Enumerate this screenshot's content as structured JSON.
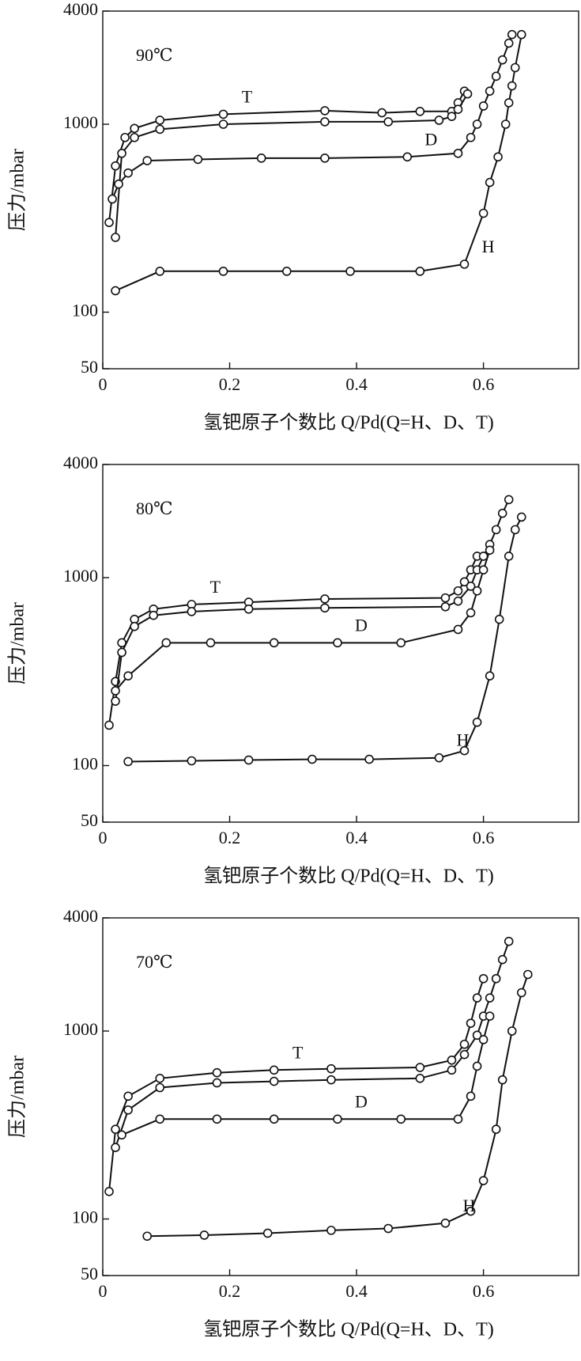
{
  "chart_data": [
    {
      "type": "line",
      "annotation": "90℃",
      "xlabel": "氢钯原子个数比 Q/Pd(Q=H、D、T)",
      "ylabel": "压力/mbar",
      "log_y": true,
      "xlim": [
        0,
        0.75
      ],
      "ylim": [
        50,
        4000
      ],
      "xticks": [
        0,
        0.2,
        0.4,
        0.6
      ],
      "yticks": [
        50,
        100,
        1000,
        4000
      ],
      "series": [
        {
          "name": "T",
          "color": "#111111",
          "x": [
            0.01,
            0.02,
            0.035,
            0.05,
            0.09,
            0.19,
            0.35,
            0.44,
            0.5,
            0.55,
            0.56,
            0.57
          ],
          "values": [
            300,
            600,
            850,
            950,
            1050,
            1130,
            1180,
            1150,
            1170,
            1170,
            1300,
            1500
          ]
        },
        {
          "color": "#111111",
          "x": [
            0.02,
            0.03,
            0.05,
            0.09,
            0.19,
            0.35,
            0.45,
            0.53,
            0.55,
            0.56,
            0.575
          ],
          "values": [
            250,
            700,
            850,
            940,
            1000,
            1030,
            1030,
            1050,
            1100,
            1200,
            1450
          ]
        },
        {
          "name": "D",
          "color": "#111111",
          "x": [
            0.015,
            0.025,
            0.04,
            0.07,
            0.15,
            0.25,
            0.35,
            0.48,
            0.56,
            0.58,
            0.59,
            0.6,
            0.61,
            0.62,
            0.63,
            0.64,
            0.645
          ],
          "values": [
            400,
            480,
            550,
            640,
            650,
            660,
            660,
            670,
            700,
            850,
            1000,
            1250,
            1500,
            1800,
            2200,
            2700,
            3000
          ]
        },
        {
          "name": "H",
          "color": "#111111",
          "x": [
            0.02,
            0.09,
            0.19,
            0.29,
            0.39,
            0.5,
            0.57,
            0.6,
            0.61,
            0.623,
            0.635,
            0.64,
            0.645,
            0.65,
            0.66
          ],
          "values": [
            130,
            165,
            165,
            165,
            165,
            165,
            180,
            336,
            490,
            670,
            1000,
            1300,
            1600,
            2000,
            3000
          ]
        }
      ]
    },
    {
      "type": "line",
      "annotation": "80℃",
      "xlabel": "氢钯原子个数比 Q/Pd(Q=H、D、T)",
      "ylabel": "压力/mbar",
      "log_y": true,
      "xlim": [
        0,
        0.75
      ],
      "ylim": [
        50,
        4000
      ],
      "xticks": [
        0,
        0.2,
        0.4,
        0.6
      ],
      "yticks": [
        50,
        100,
        1000,
        4000
      ],
      "series": [
        {
          "name": "T",
          "color": "#111111",
          "x": [
            0.01,
            0.02,
            0.03,
            0.05,
            0.08,
            0.14,
            0.23,
            0.35,
            0.54,
            0.56,
            0.57,
            0.58,
            0.59
          ],
          "values": [
            164,
            280,
            450,
            600,
            680,
            720,
            740,
            770,
            780,
            850,
            950,
            1100,
            1300
          ]
        },
        {
          "color": "#111111",
          "x": [
            0.02,
            0.03,
            0.05,
            0.08,
            0.14,
            0.23,
            0.35,
            0.54,
            0.56,
            0.58,
            0.59,
            0.6,
            0.61,
            0.62,
            0.63,
            0.64
          ],
          "values": [
            220,
            400,
            550,
            630,
            660,
            680,
            690,
            700,
            750,
            900,
            1100,
            1300,
            1500,
            1800,
            2200,
            2600
          ]
        },
        {
          "name": "D",
          "color": "#111111",
          "x": [
            0.02,
            0.04,
            0.1,
            0.17,
            0.27,
            0.37,
            0.47,
            0.56,
            0.58,
            0.59,
            0.6,
            0.61
          ],
          "values": [
            250,
            300,
            450,
            450,
            450,
            450,
            450,
            530,
            650,
            850,
            1100,
            1400
          ]
        },
        {
          "name": "H",
          "color": "#111111",
          "x": [
            0.04,
            0.14,
            0.23,
            0.33,
            0.42,
            0.53,
            0.57,
            0.59,
            0.61,
            0.625,
            0.64,
            0.65,
            0.66
          ],
          "values": [
            105,
            106,
            107,
            108,
            108,
            110,
            120,
            170,
            300,
            600,
            1300,
            1800,
            2100
          ]
        }
      ]
    },
    {
      "type": "line",
      "annotation": "70℃",
      "xlabel": "氢钯原子个数比 Q/Pd(Q=H、D、T)",
      "ylabel": "压力/mbar",
      "log_y": true,
      "xlim": [
        0,
        0.75
      ],
      "ylim": [
        50,
        4000
      ],
      "xticks": [
        0,
        0.2,
        0.4,
        0.6
      ],
      "yticks": [
        50,
        100,
        1000,
        4000
      ],
      "series": [
        {
          "name": "T",
          "color": "#111111",
          "x": [
            0.01,
            0.02,
            0.04,
            0.09,
            0.18,
            0.27,
            0.36,
            0.5,
            0.55,
            0.57,
            0.58,
            0.59,
            0.6
          ],
          "values": [
            140,
            300,
            450,
            560,
            600,
            620,
            630,
            640,
            700,
            850,
            1100,
            1500,
            1900
          ]
        },
        {
          "color": "#111111",
          "x": [
            0.02,
            0.04,
            0.09,
            0.18,
            0.27,
            0.36,
            0.5,
            0.55,
            0.57,
            0.59,
            0.6,
            0.61,
            0.62,
            0.63,
            0.64
          ],
          "values": [
            240,
            380,
            500,
            530,
            540,
            550,
            560,
            620,
            750,
            950,
            1200,
            1500,
            1900,
            2400,
            3000
          ]
        },
        {
          "name": "D",
          "color": "#111111",
          "x": [
            0.03,
            0.09,
            0.18,
            0.27,
            0.37,
            0.47,
            0.56,
            0.58,
            0.59,
            0.6,
            0.61
          ],
          "values": [
            280,
            340,
            340,
            340,
            340,
            340,
            340,
            450,
            650,
            900,
            1200
          ]
        },
        {
          "name": "H",
          "color": "#111111",
          "x": [
            0.07,
            0.16,
            0.26,
            0.36,
            0.45,
            0.54,
            0.58,
            0.6,
            0.62,
            0.63,
            0.645,
            0.66,
            0.67
          ],
          "values": [
            81,
            82,
            84,
            87,
            89,
            95,
            110,
            160,
            300,
            550,
            1000,
            1600,
            2000
          ]
        }
      ]
    }
  ]
}
